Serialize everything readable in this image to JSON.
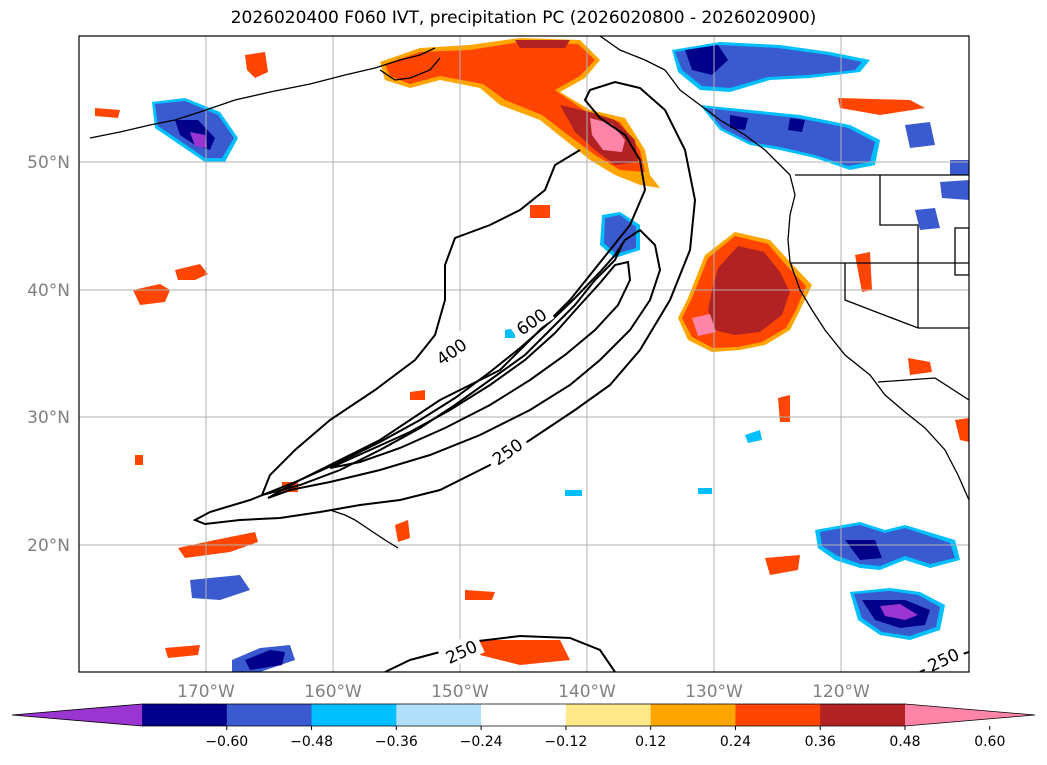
{
  "title": "2026020400 F060 IVT, precipitation PC (2026020800 - 2026020900)",
  "map": {
    "lon_labels": [
      "170°W",
      "160°W",
      "150°W",
      "140°W",
      "130°W",
      "120°W"
    ],
    "lat_labels": [
      "50°N",
      "40°N",
      "30°N",
      "20°N"
    ],
    "ivt_contour_labels": [
      "400",
      "600",
      "250",
      "250",
      "250"
    ]
  },
  "colorbar": {
    "ticks": [
      "−0.60",
      "−0.48",
      "−0.36",
      "−0.24",
      "−0.12",
      "0.12",
      "0.24",
      "0.36",
      "0.48",
      "0.60"
    ],
    "colors": [
      "#9a35d2",
      "#00008b",
      "#3a5bd0",
      "#00bfff",
      "#b0e0fa",
      "#ffffff",
      "#ffe98a",
      "#ffa500",
      "#ff4500",
      "#b22222",
      "#ff85a8"
    ]
  },
  "colors": {
    "pos_orange": "#ff4500",
    "pos_red": "#b22222",
    "pos_pink": "#ff85a8",
    "pos_light": "#ffa500",
    "neg_blue": "#3a5bd0",
    "neg_navy": "#00008b",
    "neg_purple": "#9a35d2",
    "neg_cyan": "#00bfff",
    "grid": "#b0b0b0",
    "axis_label": "#808080"
  }
}
